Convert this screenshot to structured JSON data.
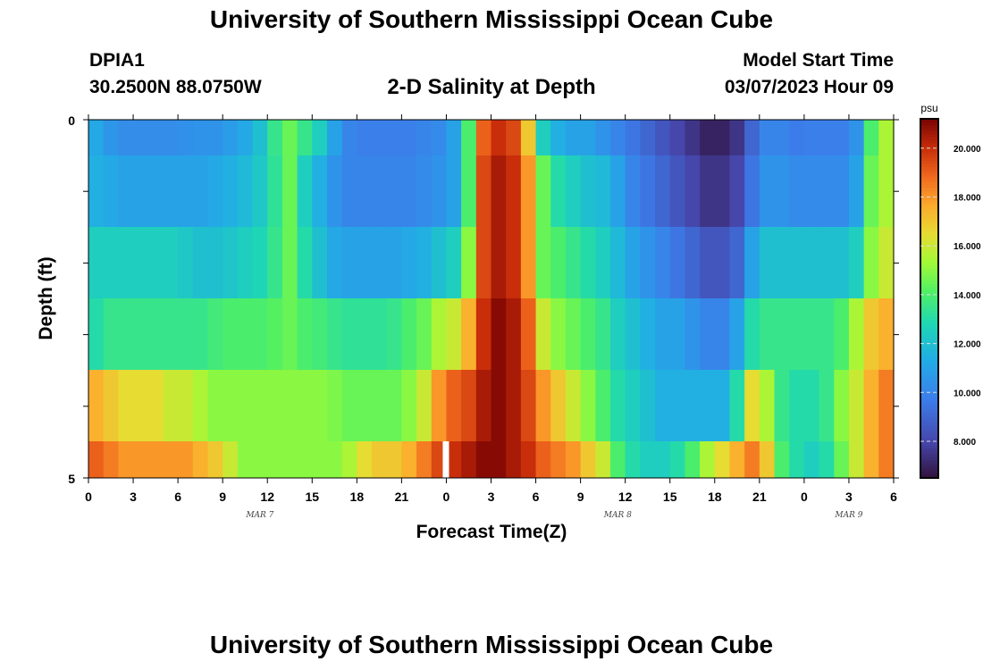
{
  "header": {
    "title": "University of Southern Mississippi Ocean Cube",
    "station": "DPIA1",
    "coords": "30.2500N  88.0750W",
    "subtitle": "2-D Salinity at Depth",
    "start_time_label": "Model Start Time",
    "start_time_value": "03/07/2023 Hour 09"
  },
  "footer": {
    "title": "University of Southern Mississippi Ocean Cube"
  },
  "chart_data": {
    "type": "heatmap",
    "title": "2-D Salinity at Depth",
    "xlabel": "Forecast Time(Z)",
    "ylabel": "Depth (ft)",
    "colorbar_unit": "psu",
    "colorbar_ticks": [
      "8.000",
      "10.000",
      "12.000",
      "14.000",
      "16.000",
      "18.000",
      "20.000"
    ],
    "colorbar_tick_values": [
      8,
      10,
      12,
      14,
      16,
      18,
      20
    ],
    "colorbar_range": [
      6.5,
      21.2
    ],
    "x_tick_labels": [
      "0",
      "3",
      "6",
      "9",
      "12",
      "15",
      "18",
      "21",
      "0",
      "3",
      "6",
      "9",
      "12",
      "15",
      "18",
      "21",
      "0",
      "3",
      "6"
    ],
    "x_range_hours": [
      0,
      54
    ],
    "day_labels": [
      {
        "label": "MAR 7",
        "hour": 11.5
      },
      {
        "label": "MAR 8",
        "hour": 35.5
      },
      {
        "label": "MAR 9",
        "hour": 51
      }
    ],
    "y_tick_labels": [
      "0",
      "5"
    ],
    "ylim": [
      0,
      5
    ],
    "depth_rows": [
      0,
      1,
      2,
      3,
      4,
      5
    ],
    "hours": [
      0,
      1,
      2,
      3,
      4,
      5,
      6,
      7,
      8,
      9,
      10,
      11,
      12,
      13,
      14,
      15,
      16,
      17,
      18,
      19,
      20,
      21,
      22,
      23,
      24,
      25,
      26,
      27,
      28,
      29,
      30,
      31,
      32,
      33,
      34,
      35,
      36,
      37,
      38,
      39,
      40,
      41,
      42,
      43,
      44,
      45,
      46,
      47,
      48,
      49,
      50,
      51,
      52,
      53
    ],
    "values": [
      [
        11.2,
        10.6,
        10.3,
        10.3,
        10.3,
        10.3,
        10.4,
        10.5,
        10.5,
        10.8,
        11.2,
        12.0,
        13.5,
        14.5,
        13.5,
        12.5,
        11.0,
        10.0,
        9.8,
        9.8,
        9.8,
        9.8,
        10.0,
        10.2,
        11.0,
        14.0,
        19.0,
        20.0,
        19.5,
        17.0,
        12.5,
        11.5,
        11.0,
        11.0,
        10.5,
        10.0,
        9.5,
        9.0,
        8.5,
        8.0,
        7.5,
        7.0,
        7.0,
        7.5,
        9.0,
        10.0,
        10.0,
        9.7,
        9.8,
        9.8,
        9.8,
        10.5,
        14.0,
        15.5
      ],
      [
        11.5,
        11.2,
        11.0,
        11.0,
        11.0,
        11.0,
        11.0,
        11.0,
        11.2,
        11.5,
        11.8,
        12.3,
        13.3,
        14.5,
        12.5,
        11.5,
        10.5,
        10.0,
        10.0,
        10.0,
        10.0,
        10.0,
        10.2,
        10.5,
        11.0,
        14.0,
        19.5,
        20.5,
        20.0,
        18.0,
        14.5,
        13.0,
        12.5,
        12.0,
        11.8,
        11.0,
        10.0,
        9.5,
        9.0,
        8.5,
        8.0,
        7.5,
        7.5,
        8.0,
        9.5,
        10.5,
        10.5,
        10.2,
        10.2,
        10.2,
        10.2,
        11.0,
        14.5,
        15.5
      ],
      [
        12.5,
        12.5,
        12.5,
        12.5,
        12.5,
        12.5,
        12.3,
        12.0,
        12.0,
        12.2,
        12.5,
        12.8,
        13.5,
        14.5,
        13.0,
        12.0,
        11.2,
        11.0,
        11.0,
        11.0,
        11.0,
        11.2,
        11.5,
        12.0,
        12.5,
        15.0,
        19.5,
        20.5,
        20.0,
        18.0,
        14.5,
        14.0,
        13.5,
        13.0,
        12.5,
        11.8,
        11.0,
        10.5,
        10.0,
        9.5,
        9.0,
        8.5,
        8.5,
        9.0,
        11.0,
        12.0,
        12.0,
        12.0,
        12.0,
        12.0,
        12.0,
        12.5,
        15.0,
        16.0
      ],
      [
        13.0,
        13.5,
        13.5,
        13.5,
        13.5,
        13.5,
        13.5,
        13.5,
        13.8,
        14.0,
        14.0,
        14.0,
        14.2,
        14.5,
        14.0,
        13.8,
        13.5,
        13.3,
        13.3,
        13.3,
        13.5,
        14.0,
        14.5,
        15.5,
        16.0,
        17.5,
        20.0,
        21.0,
        20.5,
        19.0,
        16.0,
        15.0,
        14.5,
        14.0,
        13.5,
        12.5,
        12.0,
        11.5,
        11.0,
        11.0,
        10.5,
        10.0,
        10.0,
        11.0,
        13.0,
        13.5,
        13.5,
        13.5,
        13.5,
        13.5,
        14.0,
        15.5,
        17.0,
        17.5
      ],
      [
        17.5,
        17.0,
        16.5,
        16.5,
        16.5,
        16.0,
        16.0,
        15.5,
        15.0,
        15.0,
        15.0,
        15.0,
        15.0,
        15.0,
        15.0,
        15.0,
        14.8,
        14.5,
        14.5,
        14.5,
        14.5,
        15.0,
        16.0,
        18.0,
        19.0,
        19.5,
        20.5,
        21.0,
        20.5,
        19.5,
        18.0,
        17.0,
        16.0,
        15.0,
        14.0,
        13.0,
        12.5,
        12.0,
        11.5,
        11.5,
        11.5,
        11.5,
        11.5,
        13.0,
        16.5,
        15.5,
        13.5,
        13.0,
        13.0,
        13.5,
        15.0,
        16.0,
        17.5,
        18.5
      ],
      [
        19.0,
        18.5,
        18.0,
        18.0,
        18.0,
        18.0,
        18.0,
        17.5,
        17.0,
        16.0,
        15.0,
        15.0,
        15.0,
        15.0,
        15.0,
        15.0,
        15.0,
        15.5,
        16.5,
        17.0,
        17.0,
        17.5,
        18.5,
        19.5,
        20.0,
        20.5,
        21.0,
        21.0,
        20.5,
        20.0,
        19.0,
        18.5,
        18.0,
        17.0,
        16.0,
        14.0,
        13.0,
        12.5,
        12.5,
        13.0,
        14.0,
        15.5,
        16.5,
        17.5,
        18.5,
        17.0,
        14.0,
        13.0,
        12.5,
        13.0,
        14.5,
        16.0,
        17.5,
        18.5
      ]
    ],
    "colors": {
      "frame": "#000000",
      "missing_marker": "#ffffff"
    }
  }
}
